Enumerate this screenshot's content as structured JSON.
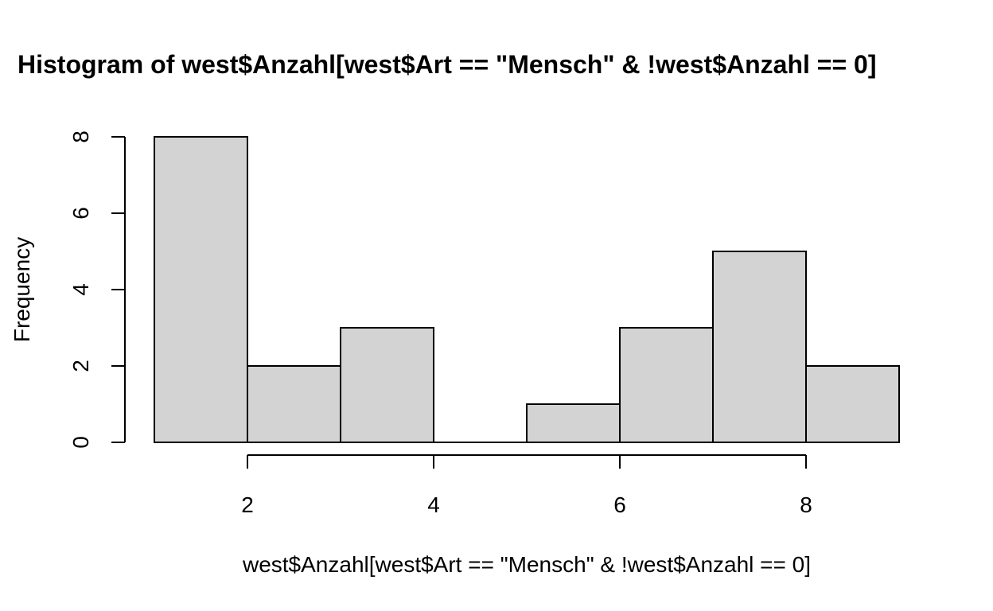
{
  "chart_data": {
    "type": "bar",
    "title": "Histogram of west$Anzahl[west$Art == \"Mensch\" & !west$Anzahl == 0]",
    "xlabel": "west$Anzahl[west$Art == \"Mensch\" & !west$Anzahl == 0]",
    "ylabel": "Frequency",
    "bins": [
      {
        "from": 1,
        "to": 2,
        "value": 8
      },
      {
        "from": 2,
        "to": 3,
        "value": 2
      },
      {
        "from": 3,
        "to": 4,
        "value": 3
      },
      {
        "from": 4,
        "to": 5,
        "value": 0
      },
      {
        "from": 5,
        "to": 6,
        "value": 1
      },
      {
        "from": 6,
        "to": 7,
        "value": 3
      },
      {
        "from": 7,
        "to": 8,
        "value": 5
      },
      {
        "from": 8,
        "to": 9,
        "value": 2
      }
    ],
    "xlim": [
      1,
      9
    ],
    "ylim": [
      0,
      8
    ],
    "x_ticks": [
      "2",
      "4",
      "6",
      "8"
    ],
    "y_ticks": [
      "0",
      "2",
      "4",
      "6",
      "8"
    ],
    "bar_color": "#d3d3d3",
    "grid": false,
    "legend": "none"
  }
}
